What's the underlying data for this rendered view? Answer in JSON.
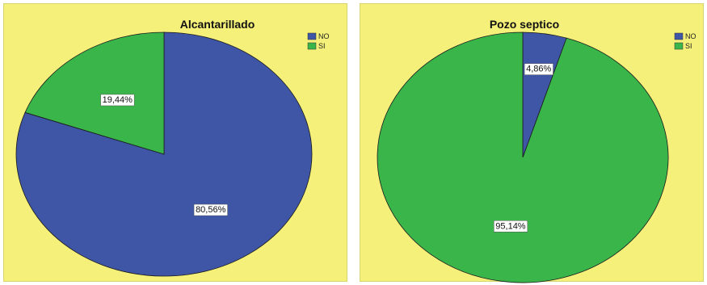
{
  "colors": {
    "background": "#f5f07a",
    "NO": "#3f56a6",
    "SI": "#39b54a"
  },
  "chart_data": [
    {
      "type": "pie",
      "title": "Alcantarillado",
      "legend_position": "top-right",
      "legend": [
        "NO",
        "SI"
      ],
      "slices": [
        {
          "name": "NO",
          "value": 80.56,
          "label": "80,56%"
        },
        {
          "name": "SI",
          "value": 19.44,
          "label": "19,44%"
        }
      ]
    },
    {
      "type": "pie",
      "title": "Pozo septico",
      "legend_position": "top-right",
      "legend": [
        "NO",
        "SI"
      ],
      "slices": [
        {
          "name": "NO",
          "value": 4.86,
          "label": "4,86%"
        },
        {
          "name": "SI",
          "value": 95.14,
          "label": "95,14%"
        }
      ]
    }
  ]
}
